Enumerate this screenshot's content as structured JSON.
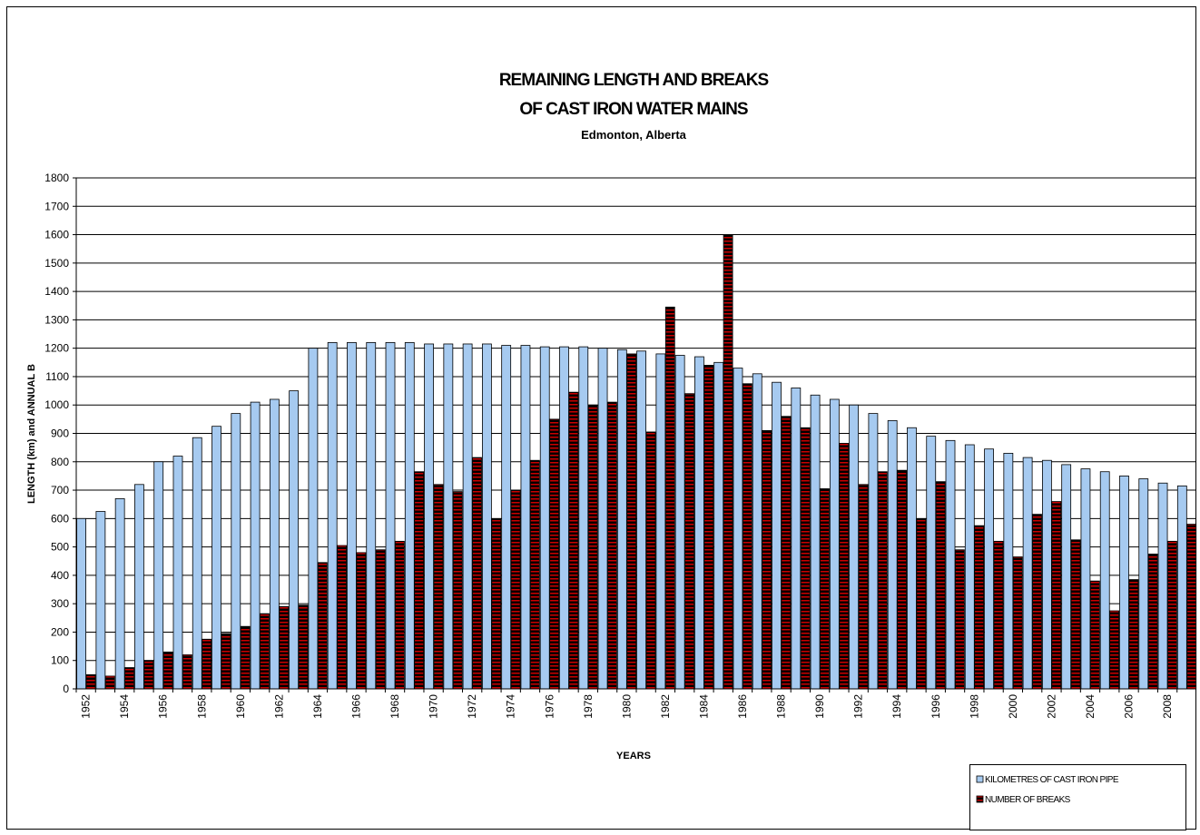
{
  "chart_data": {
    "type": "bar",
    "title": [
      "REMAINING LENGTH AND BREAKS",
      "OF CAST IRON WATER MAINS"
    ],
    "subtitle": "Edmonton, Alberta",
    "x_label": "YEARS",
    "y_label": "LENGTH (km) and  ANNUAL B",
    "categories": [
      "1952",
      null,
      "1954",
      null,
      "1956",
      null,
      "1958",
      null,
      "1960",
      null,
      "1962",
      null,
      "1964",
      null,
      "1966",
      null,
      "1968",
      null,
      "1970",
      null,
      "1972",
      null,
      "1974",
      null,
      "1976",
      null,
      "1978",
      null,
      "1980",
      null,
      "1982",
      null,
      "1984",
      null,
      "1986",
      null,
      "1988",
      null,
      "1990",
      null,
      "1992",
      null,
      "1994",
      null,
      "1996",
      null,
      "1998",
      null,
      "2000",
      null,
      "2002",
      null,
      "2004",
      null,
      "2006",
      null,
      "2008",
      null
    ],
    "series": [
      {
        "name": "KILOMETRES  OF CAST IRON PIPE",
        "color": "#a6caf0",
        "values": [
          600,
          625,
          670,
          720,
          800,
          820,
          885,
          925,
          970,
          1010,
          1020,
          1050,
          1200,
          1220,
          1220,
          1220,
          1220,
          1220,
          1215,
          1215,
          1215,
          1215,
          1210,
          1210,
          1205,
          1205,
          1205,
          1200,
          1195,
          1190,
          1180,
          1175,
          1170,
          1150,
          1130,
          1110,
          1080,
          1060,
          1035,
          1020,
          1000,
          970,
          945,
          920,
          890,
          875,
          860,
          845,
          830,
          815,
          805,
          790,
          775,
          765,
          750,
          740,
          725,
          715
        ]
      },
      {
        "name": "NUMBER OF BREAKS",
        "color": "#cc0000",
        "values": [
          50,
          45,
          75,
          100,
          130,
          120,
          175,
          195,
          220,
          265,
          290,
          295,
          445,
          505,
          480,
          490,
          520,
          765,
          720,
          695,
          815,
          600,
          700,
          805,
          950,
          1045,
          1000,
          1010,
          1180,
          905,
          1345,
          1040,
          1140,
          1600,
          1075,
          910,
          960,
          920,
          705,
          865,
          720,
          765,
          770,
          600,
          730,
          490,
          575,
          520,
          465,
          615,
          660,
          525,
          380,
          275,
          385,
          475,
          520,
          580
        ]
      }
    ],
    "ylim": [
      0,
      1800
    ],
    "yticks": [
      0,
      100,
      200,
      300,
      400,
      500,
      600,
      700,
      800,
      900,
      1000,
      1100,
      1200,
      1300,
      1400,
      1500,
      1600,
      1700,
      1800
    ],
    "grid": true,
    "legend": "lower right"
  }
}
